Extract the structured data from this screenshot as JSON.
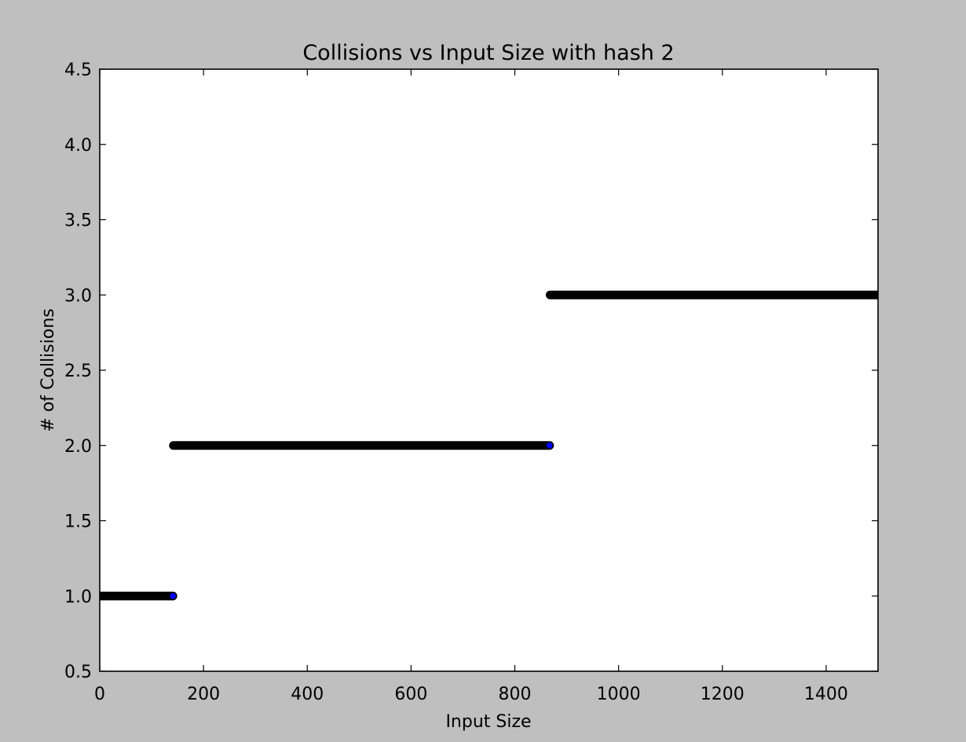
{
  "chart_data": {
    "type": "scatter",
    "title": "Collisions vs Input Size with hash 2",
    "xlabel": "Input Size",
    "ylabel": "# of Collisions",
    "xlim": [
      0,
      1500
    ],
    "ylim": [
      0.5,
      4.5
    ],
    "xticks": [
      "0",
      "200",
      "400",
      "600",
      "800",
      "1000",
      "1200",
      "1400"
    ],
    "yticks": [
      "0.5",
      "1.0",
      "1.5",
      "2.0",
      "2.5",
      "3.0",
      "3.5",
      "4.0",
      "4.5"
    ],
    "grid": false,
    "series": [
      {
        "values_description": "",
        "segments": [
          {
            "x_start": 1,
            "x_end": 141,
            "y": 1
          },
          {
            "x_start": 142,
            "x_end": 867,
            "y": 2
          },
          {
            "x_start": 868,
            "x_end": 1500,
            "y": 3
          }
        ],
        "highlighted_points": [
          {
            "x": 141,
            "y": 1
          },
          {
            "x": 867,
            "y": 2
          }
        ]
      }
    ],
    "colors": {
      "background": "#bfbfbf",
      "plot_area": "#ffffff",
      "marker_edge": "#000000",
      "marker_fill": "#0000ff"
    }
  }
}
